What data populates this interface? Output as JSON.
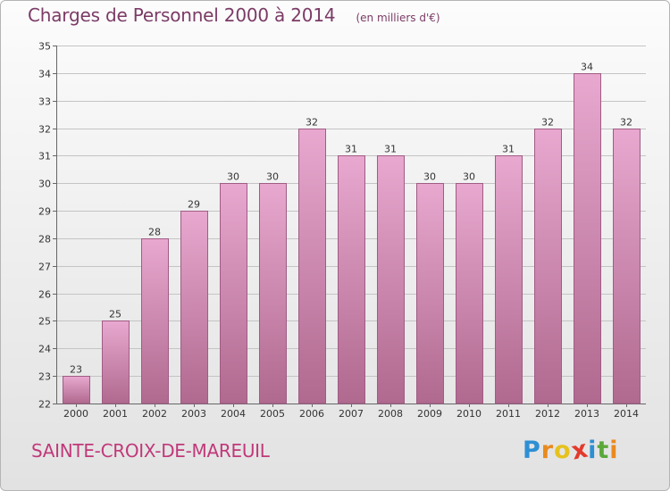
{
  "header": {
    "title": "Charges de Personnel 2000 à 2014",
    "subtitle": "(en milliers d'€)"
  },
  "footer": {
    "place_name": "SAINTE-CROIX-DE-MAREUIL",
    "brand": [
      "P",
      "r",
      "o",
      "x",
      "i",
      "t",
      "i"
    ],
    "brand_colors": [
      "#2d8fd4",
      "#e98a1f",
      "#e5c21d",
      "#e33a2c",
      "#2d8fd4",
      "#5aa83a",
      "#e98a1f"
    ]
  },
  "colors": {
    "bar_top": "#e8a8cf",
    "bar_bottom": "#b0698f",
    "bar_stroke": "#a05c84",
    "title": "#7b3b66",
    "place": "#c0397a"
  },
  "chart_data": {
    "type": "bar",
    "title": "Charges de Personnel 2000 à 2014",
    "subtitle": "(en milliers d'€)",
    "categories": [
      "2000",
      "2001",
      "2002",
      "2003",
      "2004",
      "2005",
      "2006",
      "2007",
      "2008",
      "2009",
      "2010",
      "2011",
      "2012",
      "2013",
      "2014"
    ],
    "values": [
      23,
      25,
      28,
      29,
      30,
      30,
      32,
      31,
      31,
      30,
      30,
      31,
      32,
      34,
      32
    ],
    "ylim": [
      22,
      35
    ],
    "yticks": [
      22,
      23,
      24,
      25,
      26,
      27,
      28,
      29,
      30,
      31,
      32,
      33,
      34,
      35
    ],
    "grid": true,
    "xlabel": "",
    "ylabel": ""
  }
}
